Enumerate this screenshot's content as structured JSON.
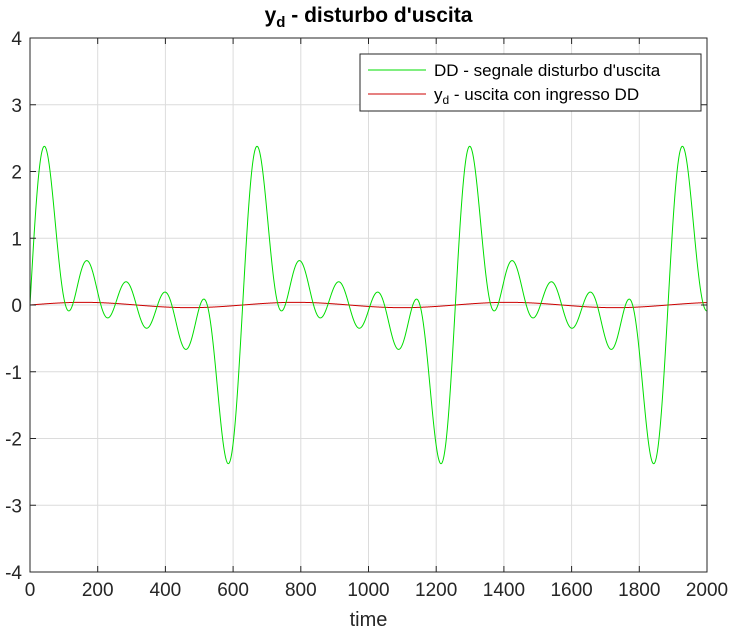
{
  "chart_data": {
    "type": "line",
    "title": "y_d - disturbo d'uscita",
    "title_main": "y",
    "title_sub": "d",
    "title_rest": " - disturbo d'uscita",
    "xlabel": "time",
    "ylabel": "",
    "xlim": [
      0,
      2000
    ],
    "ylim": [
      -4,
      4
    ],
    "xticks": [
      0,
      200,
      400,
      600,
      800,
      1000,
      1200,
      1400,
      1600,
      1800,
      2000
    ],
    "yticks": [
      -4,
      -3,
      -2,
      -1,
      0,
      1,
      2,
      3,
      4
    ],
    "grid": true,
    "legend_position": "top-right",
    "series": [
      {
        "name": "DD - segnale disturbo d'uscita",
        "color": "#00dd00",
        "waveform": {
          "period": 628.3,
          "harmonics": [
            {
              "order": 1,
              "amplitude": 0.6
            },
            {
              "order": 2,
              "amplitude": 0.6
            },
            {
              "order": 3,
              "amplitude": 0.6
            },
            {
              "order": 4,
              "amplitude": 0.6
            },
            {
              "order": 5,
              "amplitude": 0.6
            }
          ],
          "points": 4000
        },
        "peaks": [
          {
            "x": 52,
            "y": 3.23
          },
          {
            "x": 205,
            "y": 0.87
          },
          {
            "x": 348,
            "y": 0.42
          },
          {
            "x": 488,
            "y": 0.18
          },
          {
            "x": 680,
            "y": 3.23
          },
          {
            "x": 835,
            "y": 0.87
          },
          {
            "x": 975,
            "y": 0.42
          },
          {
            "x": 1115,
            "y": 0.18
          },
          {
            "x": 1308,
            "y": 3.23
          },
          {
            "x": 1462,
            "y": 0.87
          },
          {
            "x": 1604,
            "y": 0.42
          },
          {
            "x": 1742,
            "y": 0.18
          },
          {
            "x": 1936,
            "y": 3.23
          }
        ],
        "troughs": [
          {
            "x": 140,
            "y": -0.18
          },
          {
            "x": 280,
            "y": -0.42
          },
          {
            "x": 425,
            "y": -0.87
          },
          {
            "x": 578,
            "y": -3.23
          },
          {
            "x": 768,
            "y": -0.18
          },
          {
            "x": 910,
            "y": -0.42
          },
          {
            "x": 1052,
            "y": -0.87
          },
          {
            "x": 1206,
            "y": -3.23
          },
          {
            "x": 1396,
            "y": -0.18
          },
          {
            "x": 1536,
            "y": -0.42
          },
          {
            "x": 1680,
            "y": -0.87
          },
          {
            "x": 1834,
            "y": -3.23
          }
        ]
      },
      {
        "name_main": "y",
        "name_sub": "d",
        "name_rest": " - uscita con ingresso DD",
        "color": "#cc0000",
        "waveform": {
          "period": 628.3,
          "harmonics": [
            {
              "order": 1,
              "amplitude": 0.04
            }
          ],
          "points": 4000
        }
      }
    ]
  }
}
